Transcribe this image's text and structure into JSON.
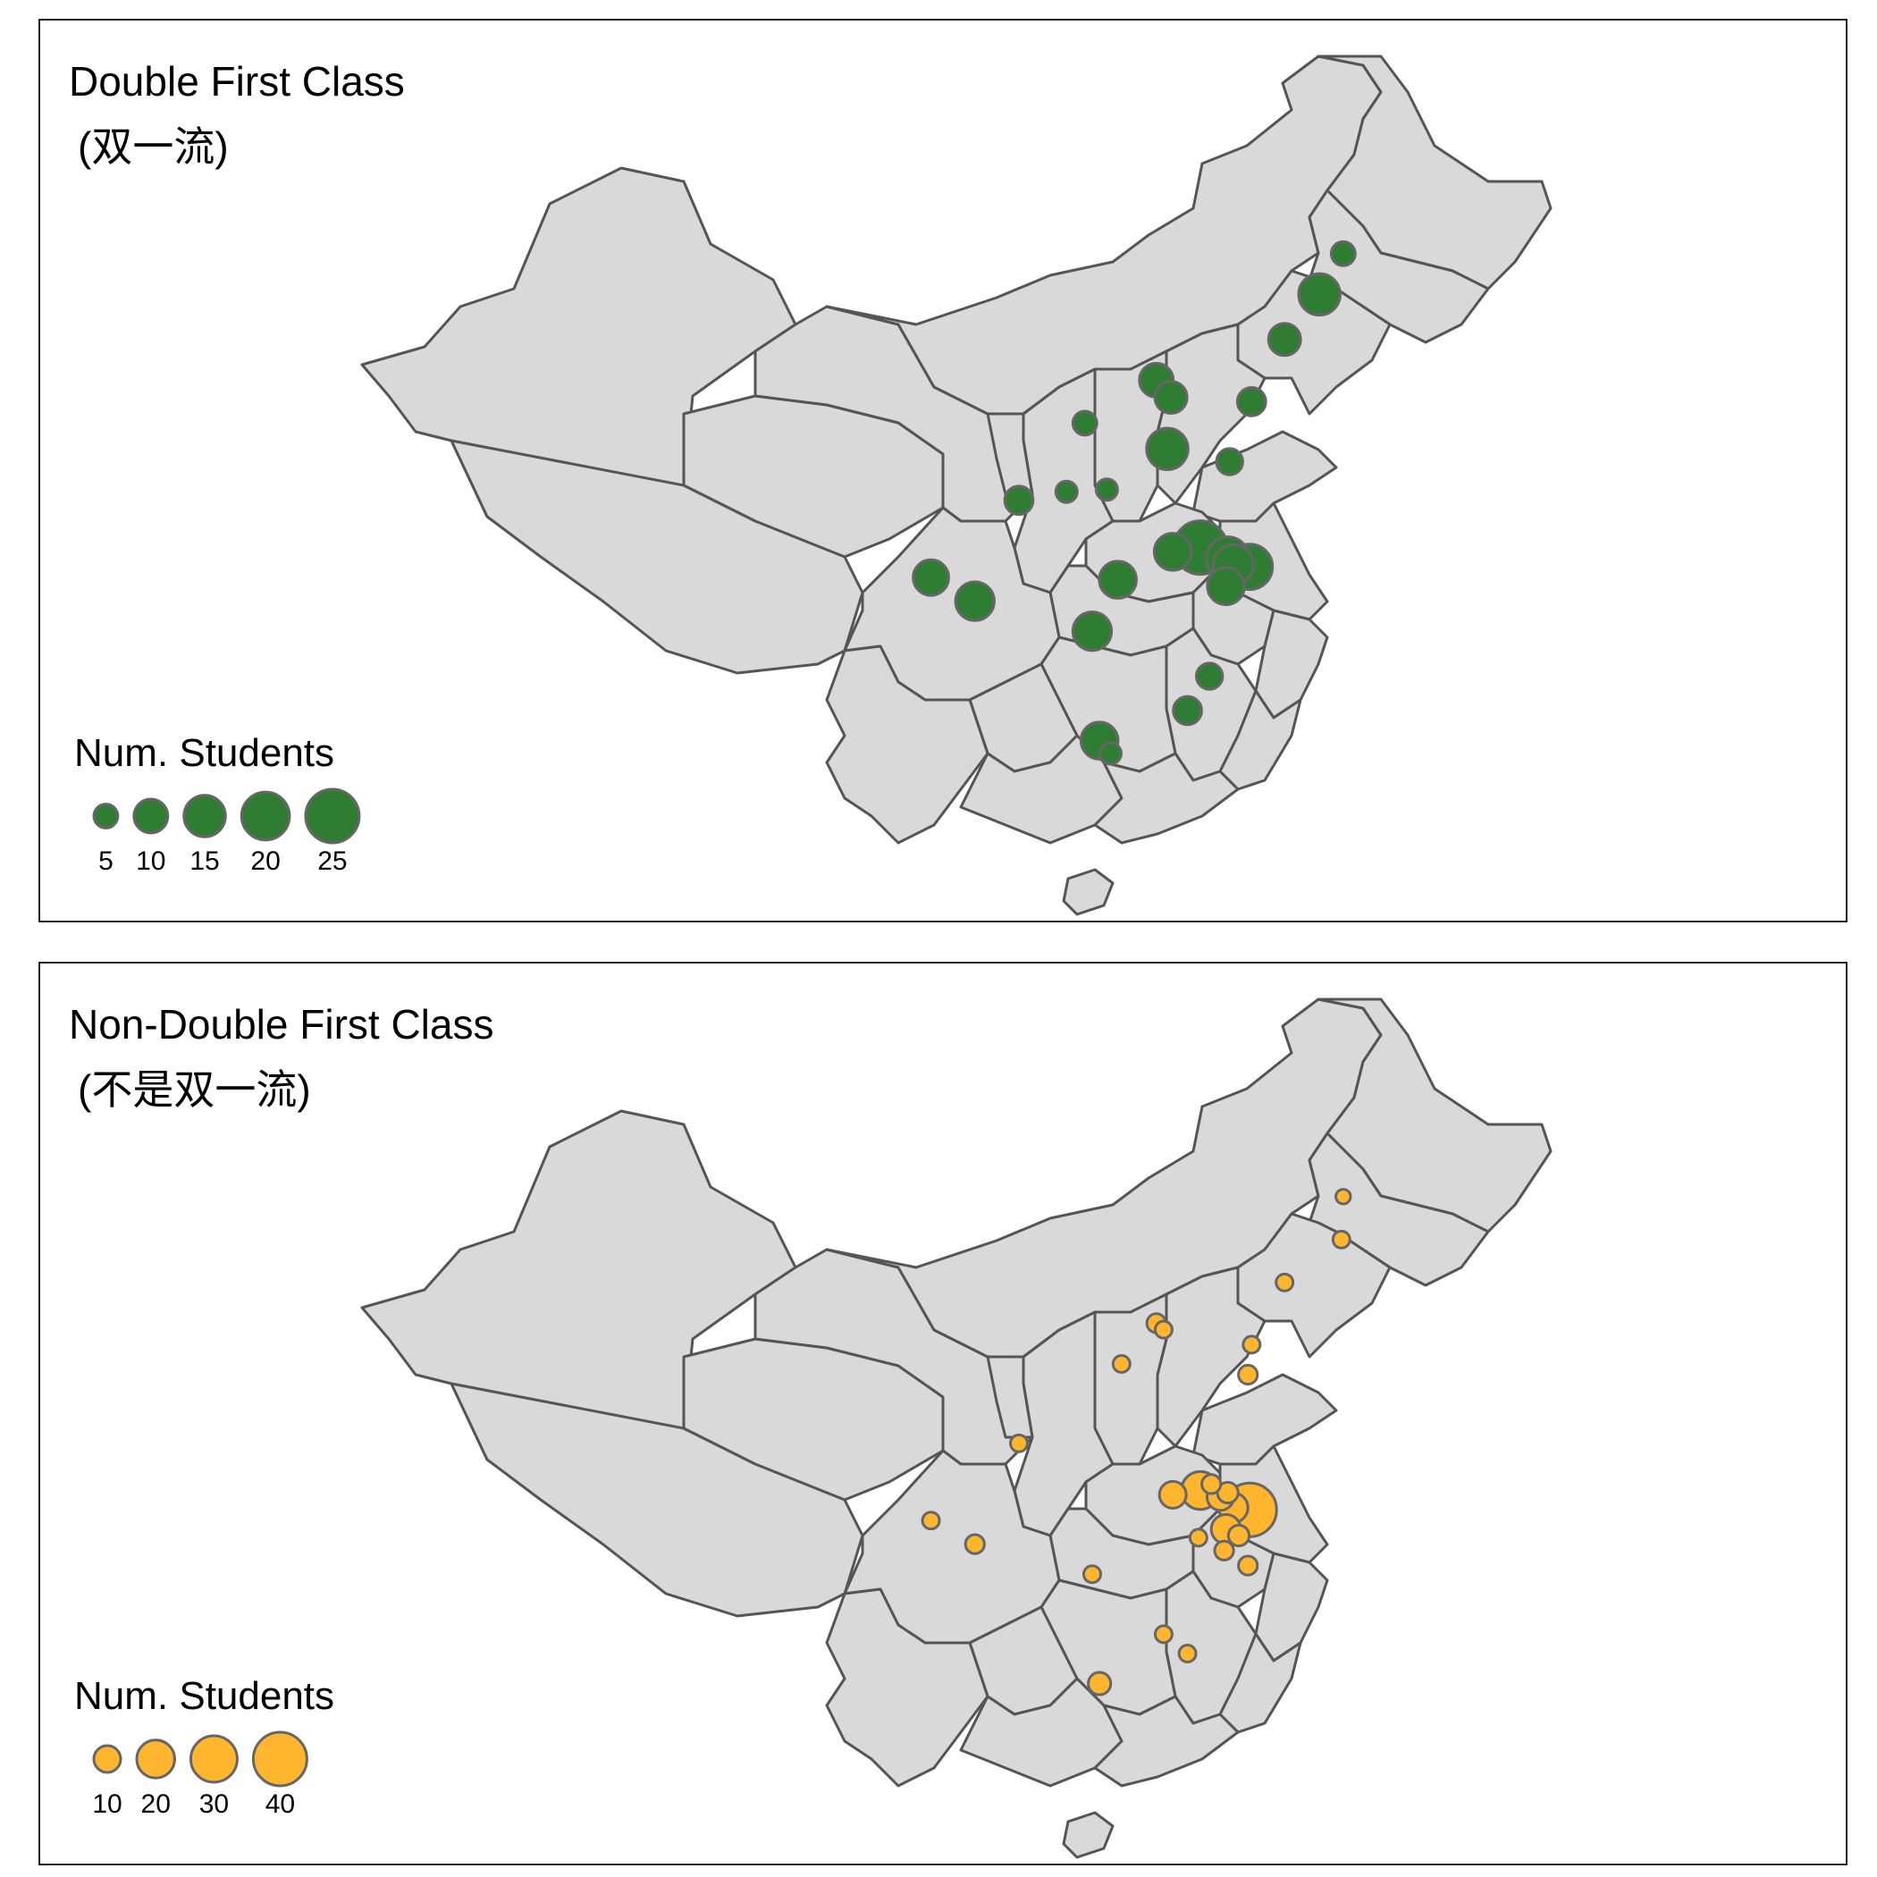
{
  "panels": [
    {
      "title": "Double First Class",
      "subtitle": "(双一流)",
      "legend_title": "Num. Students",
      "legend_values": [
        5,
        10,
        15,
        20,
        25
      ],
      "color": "#2e7d32",
      "marker_scale": 25,
      "points": [
        {
          "lon": 126.6,
          "lat": 45.8,
          "n": 5
        },
        {
          "lon": 125.3,
          "lat": 43.9,
          "n": 15
        },
        {
          "lon": 123.4,
          "lat": 41.8,
          "n": 9
        },
        {
          "lon": 121.6,
          "lat": 38.9,
          "n": 7
        },
        {
          "lon": 116.4,
          "lat": 39.9,
          "n": 10
        },
        {
          "lon": 117.2,
          "lat": 39.1,
          "n": 9
        },
        {
          "lon": 112.5,
          "lat": 37.9,
          "n": 5
        },
        {
          "lon": 117.0,
          "lat": 36.7,
          "n": 15
        },
        {
          "lon": 120.4,
          "lat": 36.1,
          "n": 6
        },
        {
          "lon": 108.9,
          "lat": 34.3,
          "n": 7
        },
        {
          "lon": 111.5,
          "lat": 34.7,
          "n": 4
        },
        {
          "lon": 113.7,
          "lat": 34.8,
          "n": 4
        },
        {
          "lon": 117.3,
          "lat": 31.9,
          "n": 12
        },
        {
          "lon": 118.8,
          "lat": 32.1,
          "n": 25
        },
        {
          "lon": 120.3,
          "lat": 31.6,
          "n": 16
        },
        {
          "lon": 120.6,
          "lat": 31.3,
          "n": 14
        },
        {
          "lon": 121.5,
          "lat": 31.2,
          "n": 18
        },
        {
          "lon": 120.2,
          "lat": 30.3,
          "n": 12
        },
        {
          "lon": 114.3,
          "lat": 30.6,
          "n": 12
        },
        {
          "lon": 104.1,
          "lat": 30.7,
          "n": 11
        },
        {
          "lon": 106.5,
          "lat": 29.6,
          "n": 13
        },
        {
          "lon": 112.9,
          "lat": 28.2,
          "n": 13
        },
        {
          "lon": 118.1,
          "lat": 24.5,
          "n": 7
        },
        {
          "lon": 119.3,
          "lat": 26.1,
          "n": 6
        },
        {
          "lon": 113.3,
          "lat": 23.1,
          "n": 12
        },
        {
          "lon": 113.9,
          "lat": 22.5,
          "n": 4
        }
      ]
    },
    {
      "title": "Non-Double First Class",
      "subtitle": "(不是双一流)",
      "legend_title": "Num. Students",
      "legend_values": [
        10,
        20,
        30,
        40
      ],
      "color": "#ffb52e",
      "marker_scale": 40,
      "points": [
        {
          "lon": 126.6,
          "lat": 45.8,
          "n": 3
        },
        {
          "lon": 126.5,
          "lat": 43.8,
          "n": 4
        },
        {
          "lon": 123.4,
          "lat": 41.8,
          "n": 4
        },
        {
          "lon": 121.6,
          "lat": 38.9,
          "n": 4
        },
        {
          "lon": 121.4,
          "lat": 37.5,
          "n": 5
        },
        {
          "lon": 116.4,
          "lat": 39.9,
          "n": 5
        },
        {
          "lon": 116.8,
          "lat": 39.6,
          "n": 4
        },
        {
          "lon": 114.5,
          "lat": 38.0,
          "n": 4
        },
        {
          "lon": 117.3,
          "lat": 31.9,
          "n": 10
        },
        {
          "lon": 119.4,
          "lat": 32.4,
          "n": 5
        },
        {
          "lon": 120.3,
          "lat": 32.0,
          "n": 6
        },
        {
          "lon": 118.8,
          "lat": 32.1,
          "n": 20
        },
        {
          "lon": 119.9,
          "lat": 31.8,
          "n": 10
        },
        {
          "lon": 120.6,
          "lat": 31.3,
          "n": 12
        },
        {
          "lon": 121.5,
          "lat": 31.2,
          "n": 40
        },
        {
          "lon": 120.2,
          "lat": 30.3,
          "n": 12
        },
        {
          "lon": 120.9,
          "lat": 30.0,
          "n": 6
        },
        {
          "lon": 120.1,
          "lat": 29.3,
          "n": 5
        },
        {
          "lon": 118.7,
          "lat": 29.9,
          "n": 4
        },
        {
          "lon": 121.4,
          "lat": 28.6,
          "n": 5
        },
        {
          "lon": 108.9,
          "lat": 34.3,
          "n": 4
        },
        {
          "lon": 104.1,
          "lat": 30.7,
          "n": 4
        },
        {
          "lon": 106.5,
          "lat": 29.6,
          "n": 5
        },
        {
          "lon": 112.9,
          "lat": 28.2,
          "n": 4
        },
        {
          "lon": 116.8,
          "lat": 25.4,
          "n": 4
        },
        {
          "lon": 118.1,
          "lat": 24.5,
          "n": 4
        },
        {
          "lon": 113.3,
          "lat": 23.1,
          "n": 7
        }
      ]
    }
  ]
}
